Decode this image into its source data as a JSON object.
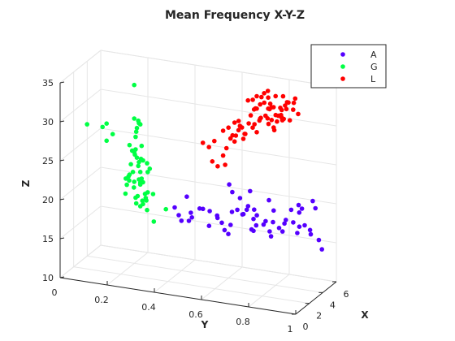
{
  "chart_data": {
    "type": "scatter",
    "title": "Mean Frequency X-Y-Z",
    "xlabel": "X",
    "ylabel": "Y",
    "zlabel": "Z",
    "xlim": [
      0,
      6
    ],
    "ylim": [
      0,
      1
    ],
    "zlim": [
      10,
      35
    ],
    "xticks": [
      "0",
      "2",
      "4",
      "6"
    ],
    "yticks": [
      "0",
      "0.2",
      "0.4",
      "0.6",
      "0.8",
      "1"
    ],
    "zticks": [
      "10",
      "15",
      "20",
      "25",
      "30",
      "35"
    ],
    "grid": true,
    "legend_position": "top-right",
    "series": [
      {
        "name": "A",
        "color": "#5500ff",
        "points": [
          [
            3.4,
            0.62,
            22.5
          ],
          [
            3.5,
            0.63,
            21.5
          ],
          [
            3.6,
            0.66,
            20.8
          ],
          [
            3.4,
            0.7,
            20.1
          ],
          [
            3.6,
            0.72,
            19.6
          ],
          [
            3.8,
            0.62,
            18.7
          ],
          [
            3.9,
            0.64,
            19.0
          ],
          [
            4.1,
            0.66,
            18.4
          ],
          [
            4.2,
            0.7,
            17.9
          ],
          [
            4.0,
            0.72,
            18.6
          ],
          [
            3.9,
            0.76,
            18.1
          ],
          [
            4.3,
            0.74,
            17.3
          ],
          [
            4.3,
            0.78,
            17.8
          ],
          [
            4.5,
            0.8,
            17.0
          ],
          [
            4.6,
            0.82,
            17.6
          ],
          [
            4.1,
            0.84,
            18.5
          ],
          [
            4.5,
            0.86,
            18.0
          ],
          [
            4.7,
            0.88,
            17.4
          ],
          [
            4.8,
            0.9,
            17.6
          ],
          [
            5.0,
            0.92,
            16.4
          ],
          [
            4.2,
            0.94,
            17.6
          ],
          [
            4.8,
            0.96,
            16.0
          ],
          [
            5.0,
            0.8,
            16.2
          ],
          [
            4.6,
            0.7,
            16.8
          ],
          [
            4.9,
            0.68,
            15.8
          ],
          [
            4.7,
            0.76,
            15.6
          ],
          [
            5.2,
            0.74,
            15.8
          ],
          [
            4.3,
            0.6,
            16.6
          ],
          [
            5.0,
            0.63,
            17.6
          ],
          [
            4.1,
            0.55,
            17.4
          ],
          [
            3.7,
            0.58,
            17.2
          ],
          [
            3.2,
            0.5,
            19.0
          ],
          [
            3.0,
            0.58,
            18.6
          ],
          [
            3.3,
            0.46,
            18.2
          ],
          [
            3.6,
            0.4,
            17.4
          ],
          [
            3.8,
            0.45,
            17.2
          ],
          [
            4.0,
            0.4,
            16.4
          ],
          [
            4.4,
            0.42,
            16.2
          ],
          [
            4.6,
            0.5,
            15.8
          ],
          [
            4.8,
            0.56,
            15.4
          ],
          [
            5.0,
            0.57,
            14.8
          ],
          [
            5.3,
            0.66,
            15.6
          ],
          [
            3.9,
            0.68,
            19.2
          ],
          [
            3.7,
            0.8,
            19.8
          ],
          [
            3.5,
            0.88,
            20.4
          ],
          [
            3.2,
            0.92,
            21.4
          ],
          [
            3.6,
            0.98,
            21.0
          ],
          [
            3.2,
            0.98,
            22.2
          ],
          [
            3.0,
            0.8,
            21.6
          ],
          [
            3.0,
            0.72,
            22.4
          ],
          [
            4.0,
            0.9,
            19.8
          ],
          [
            3.7,
            0.92,
            20.6
          ],
          [
            3.7,
            0.5,
            18.6
          ],
          [
            4.0,
            0.52,
            18.2
          ],
          [
            4.4,
            0.88,
            16.8
          ],
          [
            5.6,
            0.95,
            14.2
          ],
          [
            3.0,
            0.4,
            18.8
          ],
          [
            3.4,
            0.44,
            20.1
          ]
        ]
      },
      {
        "name": "G",
        "color": "#00ff44",
        "points": [
          [
            1.4,
            0.25,
            23.2
          ],
          [
            1.8,
            0.3,
            22.4
          ],
          [
            1.5,
            0.25,
            22.6
          ],
          [
            1.5,
            0.27,
            21.8
          ],
          [
            2.1,
            0.28,
            21.8
          ],
          [
            1.7,
            0.28,
            20.6
          ],
          [
            1.8,
            0.32,
            21.2
          ],
          [
            1.5,
            0.28,
            19.8
          ],
          [
            1.8,
            0.3,
            19.6
          ],
          [
            1.6,
            0.32,
            20.3
          ],
          [
            1.9,
            0.34,
            21.0
          ],
          [
            1.6,
            0.3,
            23.0
          ],
          [
            1.5,
            0.24,
            22.0
          ],
          [
            1.9,
            0.28,
            22.6
          ],
          [
            2.2,
            0.3,
            20.1
          ],
          [
            1.4,
            0.3,
            19.6
          ],
          [
            1.3,
            0.24,
            21.0
          ],
          [
            1.7,
            0.26,
            23.6
          ],
          [
            1.9,
            0.26,
            22.2
          ],
          [
            1.4,
            0.28,
            20.6
          ],
          [
            1.4,
            0.3,
            22.6
          ],
          [
            1.8,
            0.28,
            24.4
          ],
          [
            1.8,
            0.3,
            25.2
          ],
          [
            1.6,
            0.28,
            25.6
          ],
          [
            1.2,
            0.28,
            26.6
          ],
          [
            1.2,
            0.26,
            27.4
          ],
          [
            1.6,
            0.3,
            27.2
          ],
          [
            1.4,
            0.28,
            28.4
          ],
          [
            1.4,
            0.3,
            30.1
          ],
          [
            1.6,
            0.28,
            29.4
          ],
          [
            1.5,
            0.28,
            29.0
          ],
          [
            1.8,
            0.28,
            30.2
          ],
          [
            1.2,
            0.28,
            30.9
          ],
          [
            1.2,
            0.3,
            30.4
          ],
          [
            1.8,
            0.32,
            23.8
          ],
          [
            1.4,
            0.26,
            24.8
          ],
          [
            1.5,
            0.3,
            25.6
          ],
          [
            1.2,
            0.3,
            25.4
          ],
          [
            1.4,
            0.3,
            24.0
          ],
          [
            2.1,
            0.28,
            22.0
          ],
          [
            1.7,
            0.3,
            20.1
          ],
          [
            1.7,
            0.32,
            19.0
          ],
          [
            2.0,
            0.34,
            17.4
          ],
          [
            2.4,
            0.38,
            18.9
          ],
          [
            2.1,
            0.3,
            20.7
          ],
          [
            1.3,
            0.28,
            26.2
          ],
          [
            1.2,
            0.26,
            23.6
          ],
          [
            1.0,
            0.25,
            23.2
          ],
          [
            1.6,
            0.26,
            26.4
          ],
          [
            1.4,
            0.28,
            26.8
          ],
          [
            1.7,
            0.32,
            25.0
          ],
          [
            1.4,
            0.34,
            24.6
          ],
          [
            0.6,
            0.18,
            30.2
          ],
          [
            0.7,
            0.16,
            29.6
          ],
          [
            0.8,
            0.2,
            28.8
          ],
          [
            0.6,
            0.18,
            28.0
          ],
          [
            0.5,
            0.1,
            29.8
          ],
          [
            1.2,
            0.28,
            35.2
          ]
        ]
      },
      {
        "name": "L",
        "color": "#ff0000",
        "points": [
          [
            1.2,
            0.8,
            36.2
          ],
          [
            1.6,
            0.82,
            36.4
          ],
          [
            1.9,
            0.86,
            36.0
          ],
          [
            1.8,
            0.83,
            36.6
          ],
          [
            2.3,
            0.88,
            35.8
          ],
          [
            2.2,
            0.9,
            35.2
          ],
          [
            1.9,
            0.88,
            34.6
          ],
          [
            1.6,
            0.86,
            34.8
          ],
          [
            2.1,
            0.9,
            34.4
          ],
          [
            2.4,
            0.92,
            34.2
          ],
          [
            2.1,
            0.95,
            34.0
          ],
          [
            1.7,
            0.9,
            33.4
          ],
          [
            2.0,
            0.88,
            33.6
          ],
          [
            2.4,
            0.82,
            33.8
          ],
          [
            1.8,
            0.8,
            33.0
          ],
          [
            2.3,
            0.86,
            33.2
          ],
          [
            2.6,
            0.84,
            33.0
          ],
          [
            1.4,
            0.84,
            33.4
          ],
          [
            1.6,
            0.8,
            32.8
          ],
          [
            2.6,
            0.9,
            32.6
          ],
          [
            2.4,
            0.78,
            32.4
          ],
          [
            1.9,
            0.83,
            32.3
          ],
          [
            2.0,
            0.7,
            32.0
          ],
          [
            2.5,
            0.8,
            32.8
          ],
          [
            1.3,
            0.78,
            32.0
          ],
          [
            1.4,
            0.9,
            33.8
          ],
          [
            2.1,
            0.74,
            31.8
          ],
          [
            2.3,
            0.84,
            31.6
          ],
          [
            1.8,
            0.72,
            31.4
          ],
          [
            1.6,
            0.7,
            30.4
          ],
          [
            2.7,
            0.82,
            32.2
          ],
          [
            2.6,
            0.75,
            31.4
          ],
          [
            1.9,
            0.78,
            31.0
          ],
          [
            1.2,
            0.68,
            31.6
          ],
          [
            1.3,
            0.72,
            31.4
          ],
          [
            1.8,
            0.68,
            30.2
          ],
          [
            2.2,
            0.72,
            30.3
          ],
          [
            1.5,
            0.68,
            30.0
          ],
          [
            2.0,
            0.84,
            34.4
          ],
          [
            1.8,
            0.84,
            35.0
          ],
          [
            2.2,
            0.82,
            34.0
          ],
          [
            1.7,
            0.8,
            34.8
          ],
          [
            1.5,
            0.78,
            34.2
          ],
          [
            2.3,
            0.8,
            34.6
          ],
          [
            2.1,
            0.86,
            32.6
          ],
          [
            2.8,
            0.86,
            33.6
          ],
          [
            1.4,
            0.7,
            32.2
          ],
          [
            1.7,
            0.76,
            33.2
          ],
          [
            1.5,
            0.72,
            31.8
          ],
          [
            2.4,
            0.76,
            33.6
          ],
          [
            2.0,
            0.76,
            35.0
          ],
          [
            1.9,
            0.8,
            35.6
          ],
          [
            1.3,
            0.76,
            35.4
          ],
          [
            2.6,
            0.88,
            34.4
          ],
          [
            2.2,
            0.88,
            32.8
          ],
          [
            1.7,
            0.92,
            35.6
          ],
          [
            1.5,
            0.84,
            36.0
          ],
          [
            1.2,
            0.8,
            34.6
          ],
          [
            2.0,
            0.94,
            36.0
          ],
          [
            2.5,
            0.92,
            35.0
          ],
          [
            1.6,
            0.74,
            30.8
          ],
          [
            2.4,
            0.84,
            31.2
          ],
          [
            0.9,
            0.62,
            27.2
          ],
          [
            1.0,
            0.64,
            26.6
          ],
          [
            1.1,
            0.66,
            28.0
          ],
          [
            1.4,
            0.66,
            26.6
          ],
          [
            1.1,
            0.6,
            28.8
          ],
          [
            2.1,
            0.68,
            29.2
          ],
          [
            0.9,
            0.58,
            29.4
          ],
          [
            1.6,
            0.66,
            28.6
          ],
          [
            2.0,
            0.72,
            29.8
          ],
          [
            1.8,
            0.64,
            30.6
          ],
          [
            1.2,
            0.62,
            29.6
          ]
        ]
      }
    ]
  }
}
